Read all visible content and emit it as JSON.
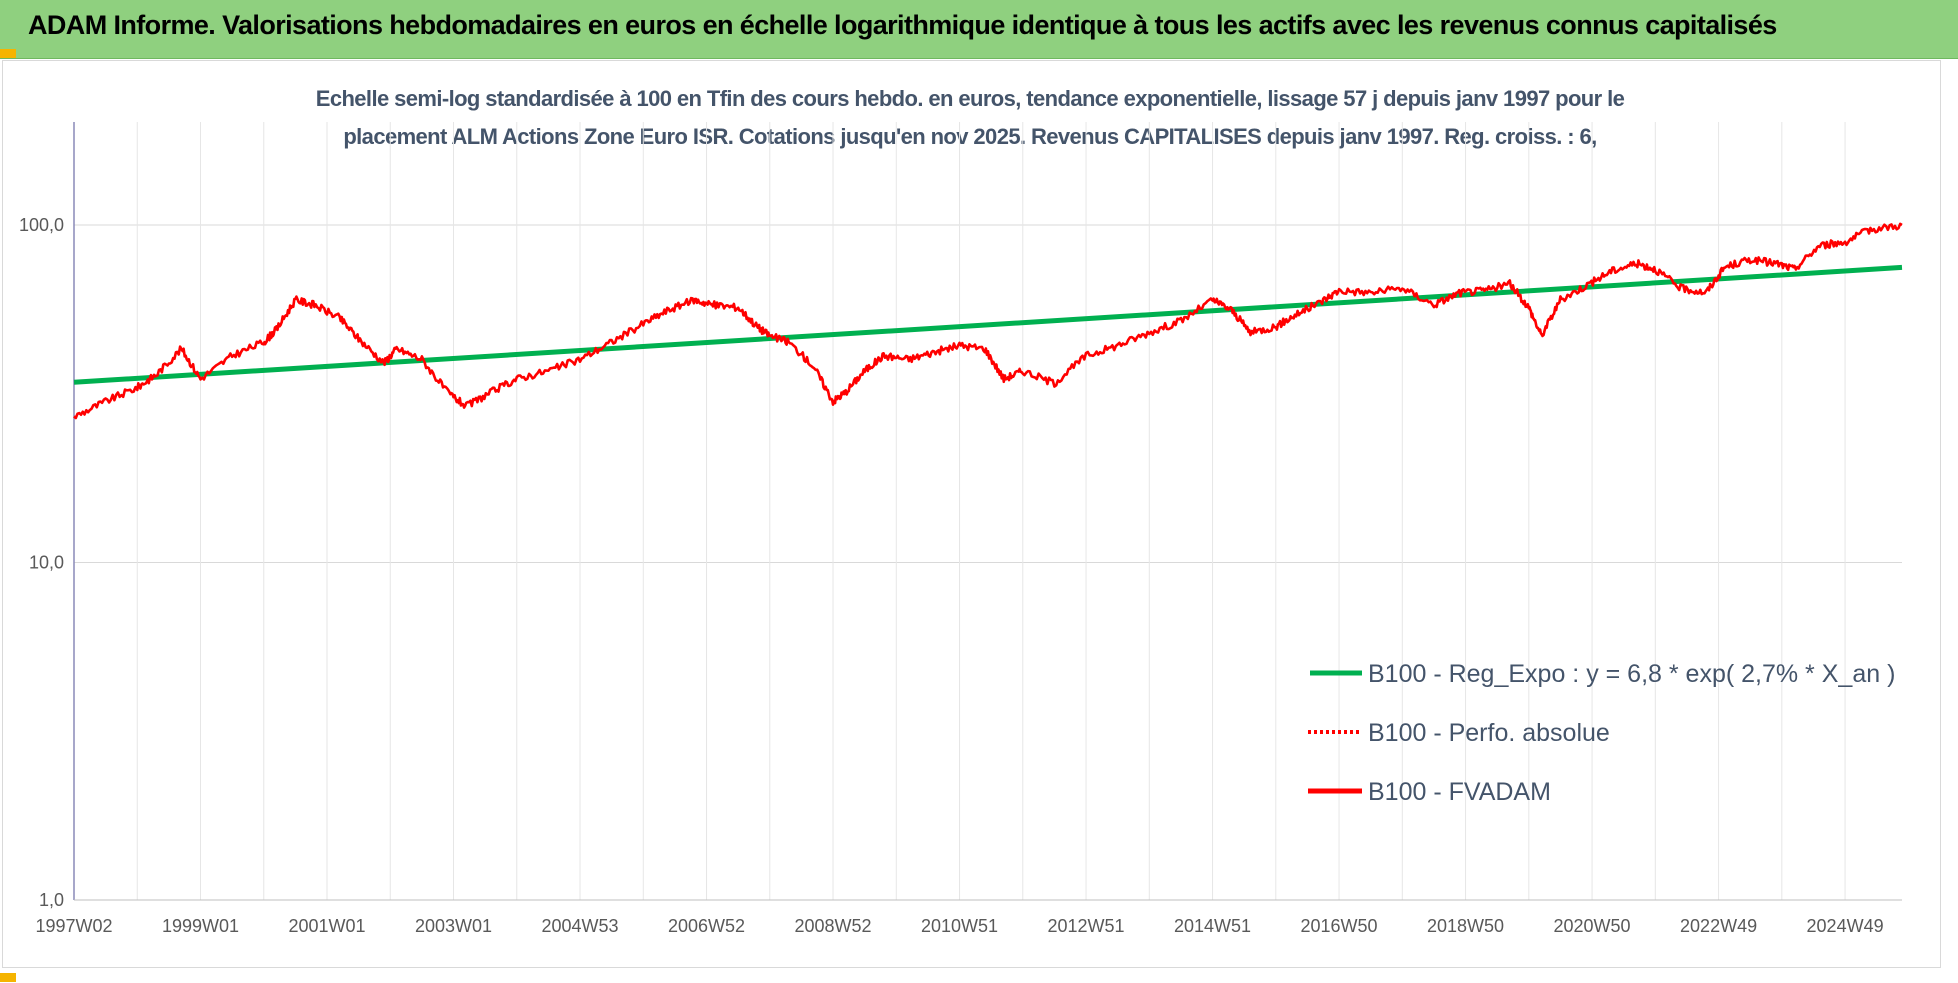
{
  "banner": {
    "title": "ADAM Informe. Valorisations hebdomadaires en euros en échelle logarithmique identique à tous les actifs avec les revenus connus capitalisés"
  },
  "colors": {
    "banner_bg": "#8fd07f",
    "accent_corner": "#f5b400",
    "regression": "#00b050",
    "fvadam": "#ff0000",
    "perfo": "#ff0000",
    "title_text": "#44546a"
  },
  "chart_data": {
    "type": "line",
    "title_line1": "Echelle semi-log standardisée à 100 en Tfin des cours hebdo. en euros, tendance exponentielle, lissage 57 j depuis janv 1997 pour le",
    "title_line2": "placement ALM Actions Zone Euro ISR. Cotations jusqu'en nov 2025. Revenus CAPITALISES depuis janv 1997. Reg. croiss. : 6,",
    "y_scale": "log",
    "ylim": [
      1,
      200
    ],
    "y_ticks": [
      {
        "value": 100,
        "label": "100,0"
      },
      {
        "value": 10,
        "label": "10,0"
      },
      {
        "value": 1,
        "label": "1,0"
      }
    ],
    "xlim": [
      1997.0,
      2025.9
    ],
    "x_ticks": [
      {
        "value": 1997.0,
        "label": "1997W02"
      },
      {
        "value": 1999.0,
        "label": "1999W01"
      },
      {
        "value": 2001.0,
        "label": "2001W01"
      },
      {
        "value": 2003.0,
        "label": "2003W01"
      },
      {
        "value": 2005.0,
        "label": "2004W53"
      },
      {
        "value": 2007.0,
        "label": "2006W52"
      },
      {
        "value": 2009.0,
        "label": "2008W52"
      },
      {
        "value": 2011.0,
        "label": "2010W51"
      },
      {
        "value": 2013.0,
        "label": "2012W51"
      },
      {
        "value": 2015.0,
        "label": "2014W51"
      },
      {
        "value": 2017.0,
        "label": "2016W50"
      },
      {
        "value": 2019.0,
        "label": "2018W50"
      },
      {
        "value": 2021.0,
        "label": "2020W50"
      },
      {
        "value": 2023.0,
        "label": "2022W49"
      },
      {
        "value": 2025.0,
        "label": "2024W49"
      }
    ],
    "grid": "vertical",
    "legend_position": "bottom-right",
    "series": [
      {
        "name": "B100 - Reg_Expo : y = 6,8 * exp( 2,7% *  X_an )",
        "color": "#00b050",
        "style": "solid",
        "x": [
          1997.0,
          2025.9
        ],
        "y": [
          34.2,
          74.9
        ]
      },
      {
        "name": "B100 - Perfo. absolue",
        "color": "#ff0000",
        "style": "dotted",
        "x": [],
        "y": []
      },
      {
        "name": "B100 - FVADAM",
        "color": "#ff0000",
        "style": "solid",
        "x": [
          1997.0,
          1997.5,
          1998.0,
          1998.3,
          1998.7,
          1999.0,
          1999.5,
          2000.0,
          2000.2,
          2000.5,
          2000.8,
          2001.2,
          2001.5,
          2001.9,
          2002.1,
          2002.5,
          2002.9,
          2003.2,
          2003.6,
          2004.0,
          2004.5,
          2005.0,
          2005.5,
          2006.0,
          2006.4,
          2006.8,
          2007.1,
          2007.5,
          2007.8,
          2008.0,
          2008.3,
          2008.7,
          2009.0,
          2009.2,
          2009.5,
          2009.8,
          2010.2,
          2010.6,
          2011.0,
          2011.4,
          2011.7,
          2012.0,
          2012.5,
          2013.0,
          2013.5,
          2014.0,
          2014.5,
          2015.0,
          2015.3,
          2015.6,
          2016.0,
          2016.3,
          2016.7,
          2017.0,
          2017.5,
          2018.0,
          2018.5,
          2018.9,
          2019.3,
          2019.7,
          2020.0,
          2020.2,
          2020.5,
          2020.9,
          2021.3,
          2021.7,
          2022.0,
          2022.4,
          2022.8,
          2023.1,
          2023.5,
          2023.9,
          2024.2,
          2024.6,
          2025.0,
          2025.4,
          2025.9
        ],
        "y": [
          27,
          30,
          33,
          36,
          43,
          35,
          41,
          45,
          49,
          60,
          58,
          53,
          46,
          39,
          43,
          40,
          32,
          29,
          32,
          35,
          37,
          40,
          45,
          51,
          56,
          60,
          58,
          57,
          50,
          47,
          45,
          38,
          30,
          32,
          37,
          41,
          40,
          42,
          44,
          43,
          35,
          37,
          34,
          41,
          44,
          48,
          52,
          60,
          56,
          48,
          50,
          54,
          59,
          64,
          63,
          65,
          58,
          63,
          64,
          67,
          57,
          47,
          60,
          66,
          73,
          77,
          74,
          65,
          63,
          75,
          79,
          77,
          74,
          87,
          89,
          97,
          100
        ]
      }
    ]
  },
  "legend": {
    "reg": "B100 - Reg_Expo : y = 6,8 * exp( 2,7% *  X_an )",
    "perfo": "B100 - Perfo. absolue",
    "fvadam": "B100 - FVADAM"
  }
}
